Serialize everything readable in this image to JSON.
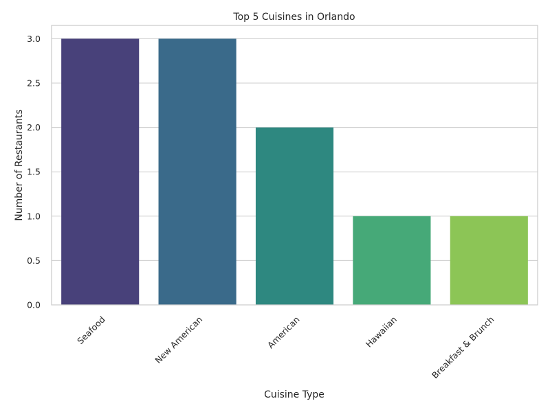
{
  "chart_data": {
    "type": "bar",
    "title": "Top 5 Cuisines in Orlando",
    "xlabel": "Cuisine Type",
    "ylabel": "Number of Restaurants",
    "categories": [
      "Seafood",
      "New American",
      "American",
      "Hawaiian",
      "Breakfast & Brunch"
    ],
    "values": [
      3,
      3,
      2,
      1,
      1
    ],
    "colors": [
      "#48417a",
      "#3a6a8a",
      "#2e8880",
      "#46a978",
      "#8cc556"
    ],
    "ylim": [
      0,
      3.15
    ],
    "yticks": [
      0.0,
      0.5,
      1.0,
      1.5,
      2.0,
      2.5,
      3.0
    ],
    "ytick_labels": [
      "0.0",
      "0.5",
      "1.0",
      "1.5",
      "2.0",
      "2.5",
      "3.0"
    ],
    "grid": "horizontal",
    "legend": "none"
  }
}
